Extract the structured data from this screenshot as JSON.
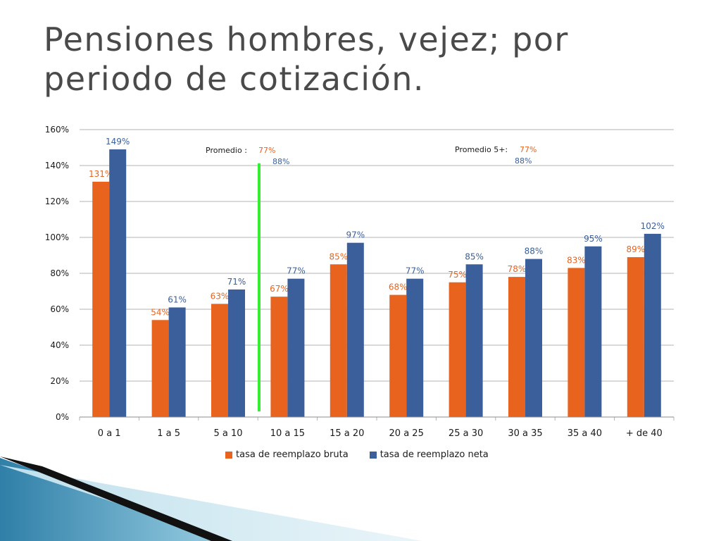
{
  "slide": {
    "title_line1": "Pensiones hombres, vejez; por",
    "title_line2": "periodo de cotización."
  },
  "colors": {
    "bruta": "#e8641e",
    "neta": "#3a5f9a",
    "average_line": "#33ee33",
    "grid": "#b3b3b3",
    "text": "#1a1a1a"
  },
  "chart_data": {
    "type": "bar",
    "categories": [
      "0 a 1",
      "1 a 5",
      "5 a 10",
      "10 a 15",
      "15 a 20",
      "20 a 25",
      "25 a 30",
      "30 a 35",
      "35 a 40",
      "+ de 40"
    ],
    "series": [
      {
        "name": "tasa de reemplazo bruta",
        "values": [
          131,
          54,
          63,
          67,
          85,
          68,
          75,
          78,
          83,
          89
        ]
      },
      {
        "name": "tasa de reemplazo neta",
        "values": [
          149,
          61,
          71,
          77,
          97,
          77,
          85,
          88,
          95,
          102
        ]
      }
    ],
    "data_labels": {
      "bruta": [
        "131%",
        "54%",
        "63%",
        "67%",
        "85%",
        "68%",
        "75%",
        "78%",
        "83%",
        "89%"
      ],
      "neta": [
        "149%",
        "61%",
        "71%",
        "77%",
        "97%",
        "77%",
        "85%",
        "88%",
        "95%",
        "102%"
      ]
    },
    "yticks": [
      "0%",
      "20%",
      "40%",
      "60%",
      "80%",
      "100%",
      "120%",
      "140%",
      "160%"
    ],
    "ylim": [
      0,
      160
    ],
    "grid": true,
    "legend": "bottom",
    "annotations": {
      "promedio_label": "Promedio :",
      "promedio_bruta": "77%",
      "promedio_neta": "88%",
      "promedio5_label": "Promedio 5+:",
      "promedio5_bruta": "77%",
      "promedio5_neta": "88%"
    }
  }
}
